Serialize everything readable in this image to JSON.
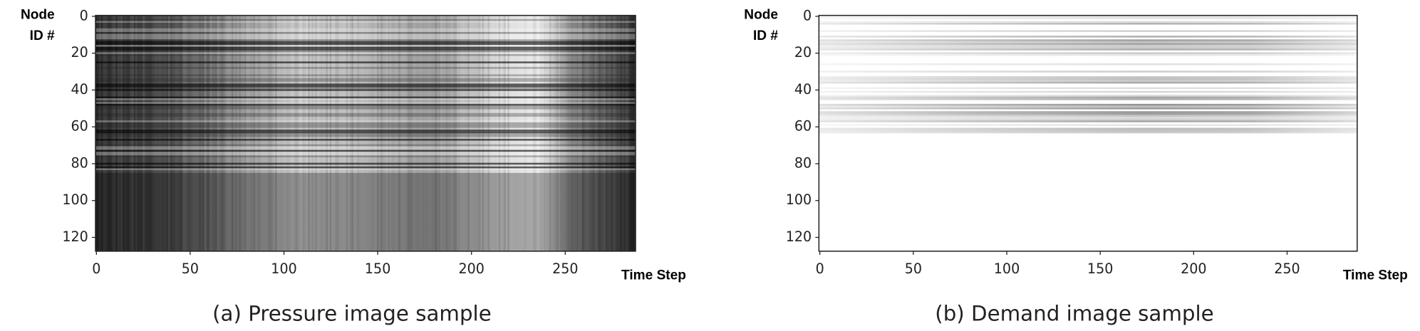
{
  "chart_data": [
    {
      "type": "heatmap",
      "cmap": "gray",
      "title": "(a) Pressure image sample",
      "x_label": "Time Step",
      "y_label_lines": [
        "Node",
        "ID #"
      ],
      "xlim": [
        -0.5,
        287.5
      ],
      "ylim": [
        127.5,
        -0.5
      ],
      "xticks": [
        0,
        50,
        100,
        150,
        200,
        250
      ],
      "yticks": [
        0,
        20,
        40,
        60,
        80,
        100,
        120
      ]
    },
    {
      "type": "heatmap",
      "cmap": "gray_r",
      "title": "(b) Demand image sample",
      "x_label": "Time Step",
      "y_label_lines": [
        "Node",
        "ID #"
      ],
      "xlim": [
        -0.5,
        287.5
      ],
      "ylim": [
        127.5,
        -0.5
      ],
      "xticks": [
        0,
        50,
        100,
        150,
        200,
        250
      ],
      "yticks": [
        0,
        20,
        40,
        60,
        80,
        100,
        120
      ]
    }
  ]
}
